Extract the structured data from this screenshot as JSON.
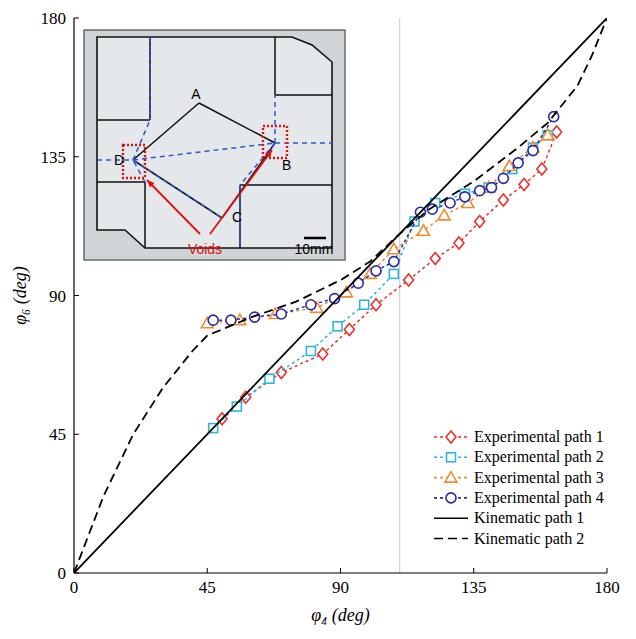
{
  "chart_data": {
    "type": "line",
    "x_label": "φ₄ (deg)",
    "y_label": "φ₆ (deg)",
    "xlim": [
      0,
      180
    ],
    "ylim": [
      0,
      180
    ],
    "xticks": [
      0,
      45,
      90,
      135,
      180
    ],
    "yticks": [
      0,
      45,
      90,
      135,
      180
    ],
    "reference_x": 110,
    "legend": "bottom-right",
    "annotations": [
      "A",
      "B",
      "C",
      "D",
      "Voids",
      "10mm"
    ],
    "series": [
      {
        "name": "Experimental path 1",
        "color": "#e8312a",
        "marker": "diamond",
        "line_style": "dotted",
        "x": [
          50,
          58,
          70,
          84,
          93,
          102,
          113,
          122,
          130,
          137,
          145,
          152,
          158,
          163
        ],
        "values": [
          50,
          57,
          65,
          71,
          79,
          87,
          95,
          102,
          107,
          114,
          121,
          126,
          131,
          143
        ]
      },
      {
        "name": "Experimental path 2",
        "color": "#2bb5e0",
        "marker": "square",
        "line_style": "dotted",
        "x": [
          47,
          55,
          66,
          80,
          89,
          98,
          108,
          115,
          122,
          132,
          140,
          148,
          155,
          160
        ],
        "values": [
          47,
          54,
          63,
          72,
          80,
          87,
          97,
          114,
          120,
          123,
          125,
          131,
          138,
          142
        ]
      },
      {
        "name": "Experimental path 3",
        "color": "#f08c30",
        "marker": "triangle",
        "line_style": "dotted",
        "x": [
          45,
          56,
          68,
          82,
          92,
          100,
          108,
          118,
          125,
          133,
          140,
          147,
          155,
          160
        ],
        "values": [
          81,
          82,
          84,
          86,
          91,
          97,
          105,
          111,
          116,
          120,
          125,
          132,
          138,
          142
        ]
      },
      {
        "name": "Experimental path 4",
        "color": "#2a2aa8",
        "marker": "circle",
        "line_style": "dotted",
        "x": [
          47,
          53,
          61,
          70,
          80,
          88,
          96,
          102,
          108,
          117,
          121,
          127,
          132,
          137,
          141,
          145,
          150,
          155,
          162
        ],
        "values": [
          82,
          82,
          83,
          84,
          87,
          89,
          94,
          98,
          101,
          117,
          118,
          120,
          122,
          124,
          125,
          128,
          133,
          137,
          148
        ]
      },
      {
        "name": "Kinematic path 1",
        "color": "#000000",
        "marker": "none",
        "line_style": "solid",
        "x": [
          0,
          180
        ],
        "values": [
          0,
          180
        ]
      },
      {
        "name": "Kinematic path 2",
        "color": "#000000",
        "marker": "none",
        "line_style": "dashed",
        "x": [
          0,
          10,
          20,
          30,
          40,
          45,
          60,
          75,
          90,
          100,
          110,
          120,
          135,
          150,
          160,
          170,
          175,
          180
        ],
        "values": [
          0,
          25,
          45,
          60,
          72,
          77,
          83,
          88,
          95,
          101,
          110,
          118,
          127,
          138,
          146,
          158,
          168,
          180
        ]
      }
    ]
  }
}
